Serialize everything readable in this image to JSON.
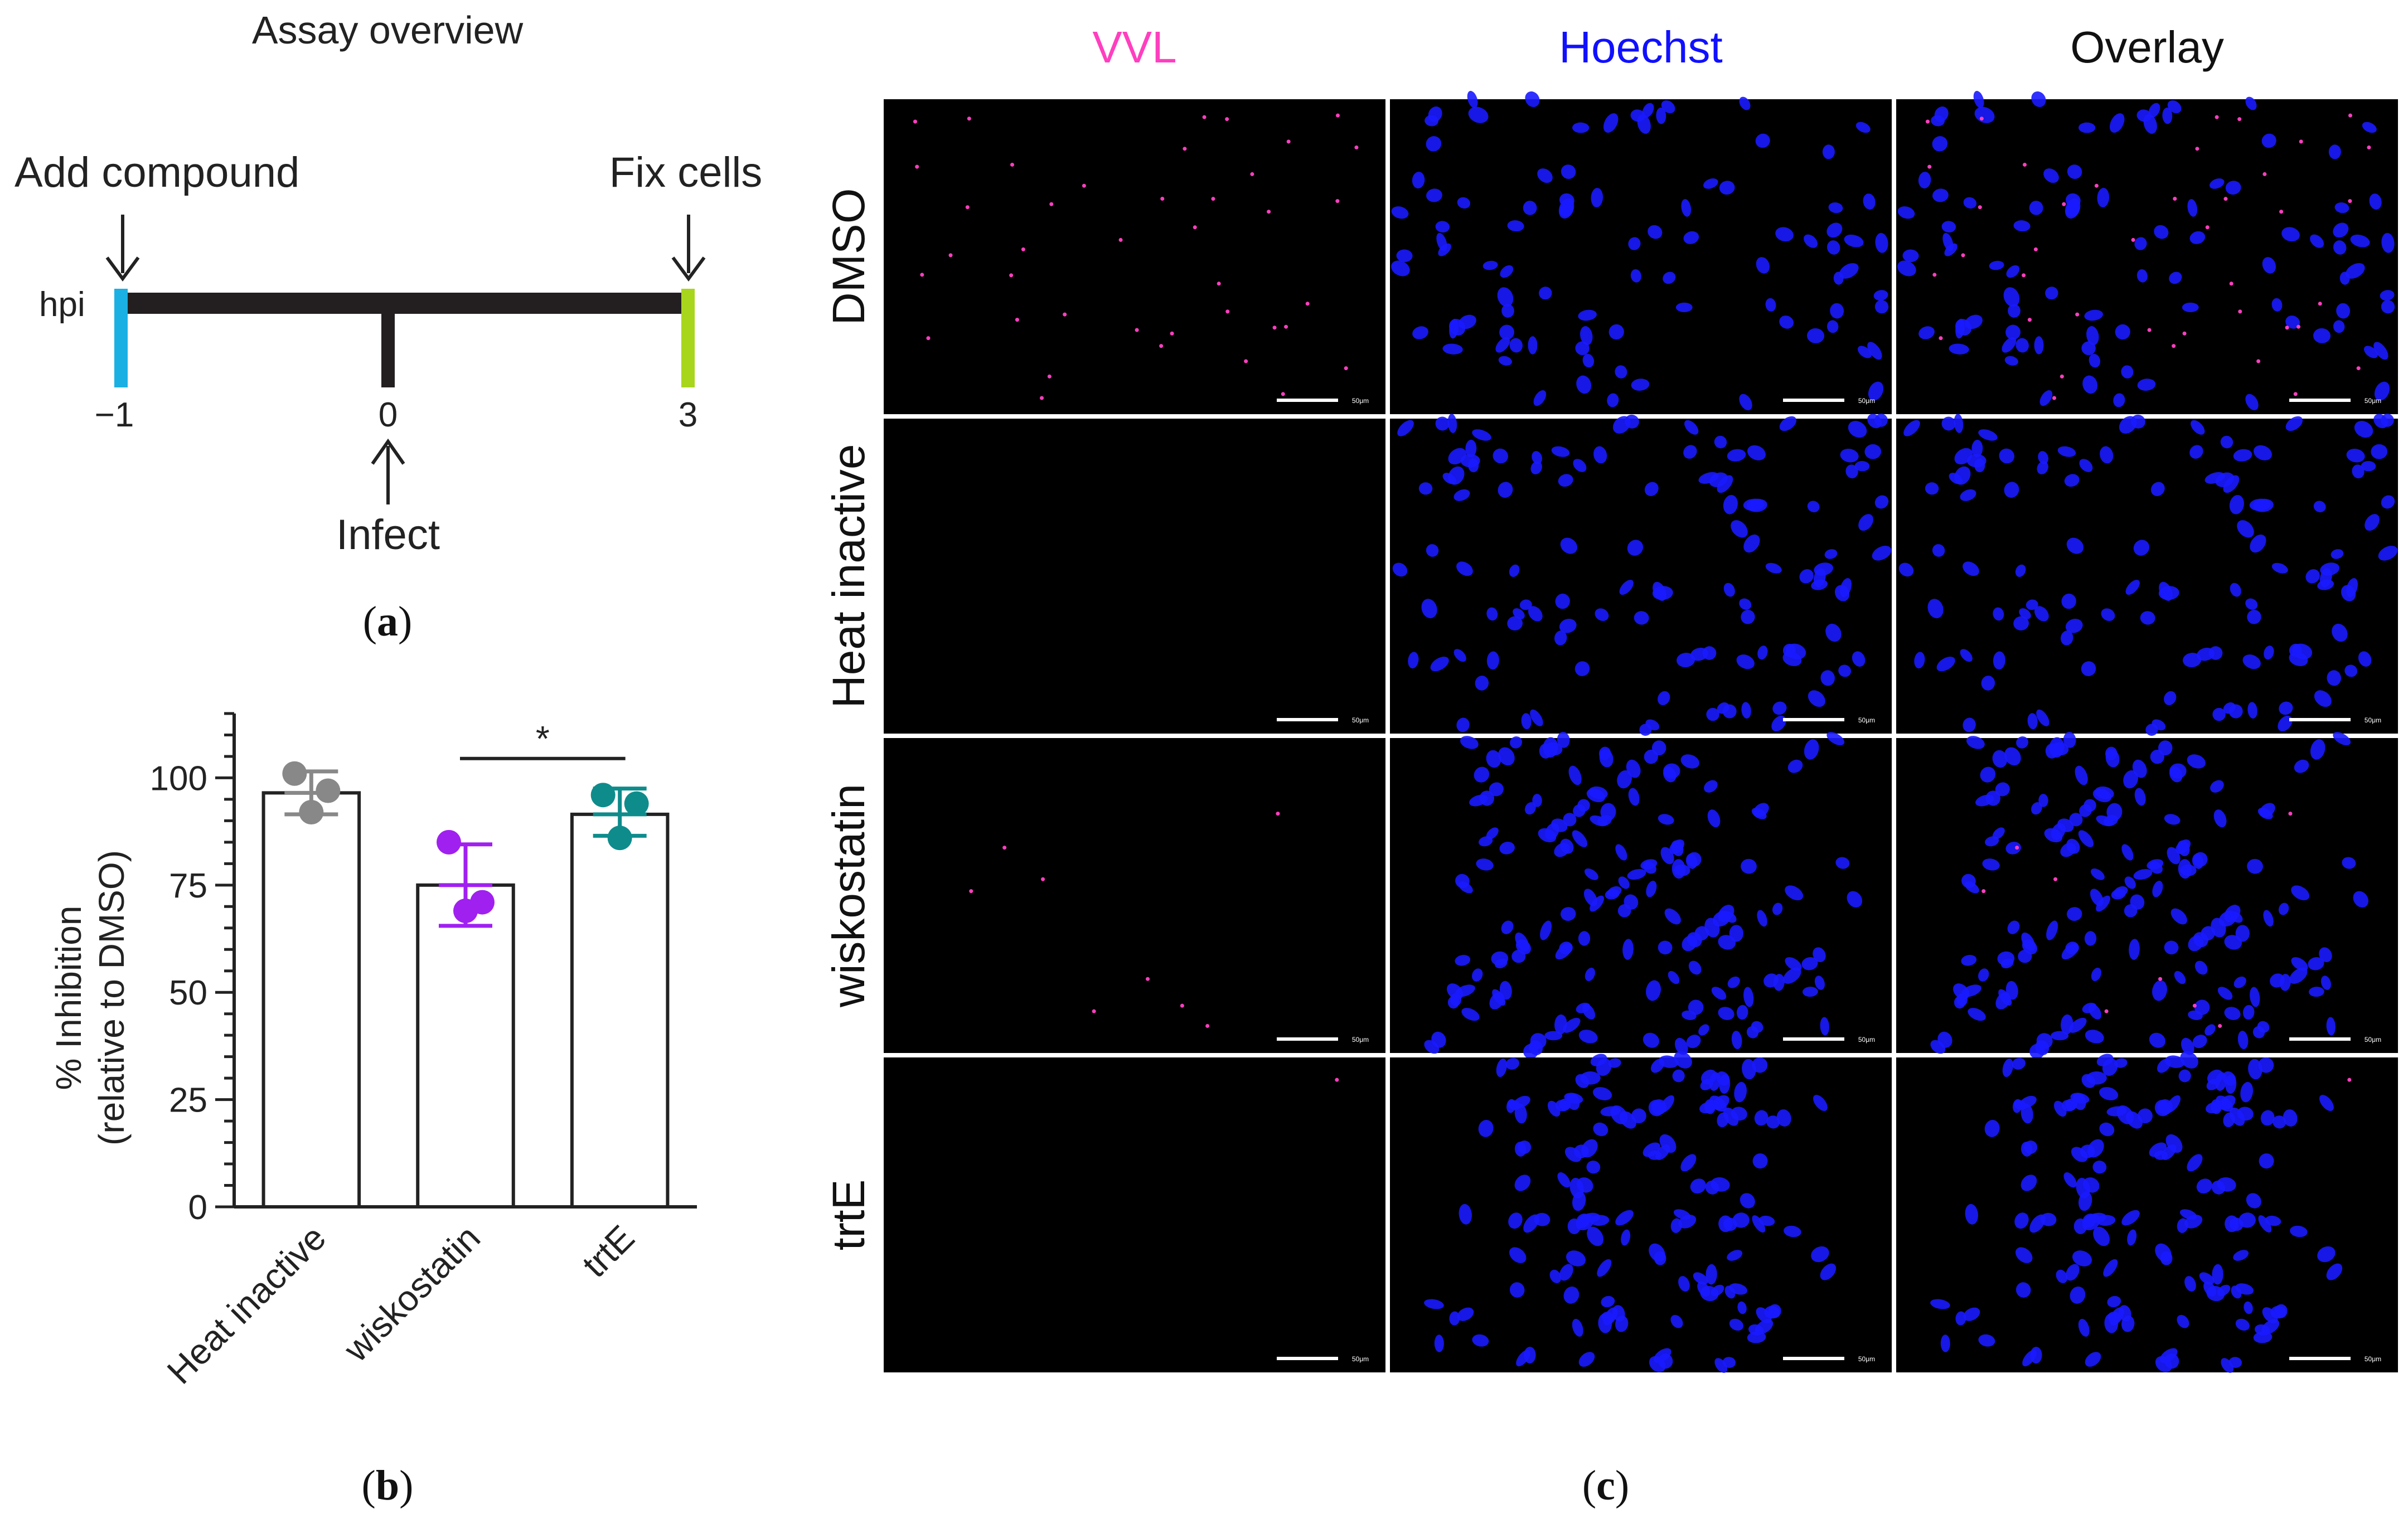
{
  "panel_a": {
    "title": "Assay overview",
    "add_label": "Add compound",
    "fix_label": "Fix cells",
    "infect_label": "Infect",
    "axis_label": "hpi",
    "ticks": [
      "−1",
      "0",
      "3"
    ],
    "caption": "a",
    "colors": {
      "start": "#1bb0e3",
      "end": "#a8d61c",
      "bar": "#231f20"
    }
  },
  "panel_b": {
    "caption": "b",
    "significance": "*"
  },
  "panel_c": {
    "caption": "c",
    "columns": [
      {
        "label": "VVL",
        "color": "#ff3fbf"
      },
      {
        "label": "Hoechst",
        "color": "#1010ff"
      },
      {
        "label": "Overlay",
        "color": "#111111"
      }
    ],
    "rows": [
      "DMSO",
      "Heat inactive",
      "wiskostatin",
      "trtE"
    ],
    "scale_bar_label": "50μm"
  },
  "chart_data": {
    "type": "bar",
    "categories": [
      "Heat inactive",
      "wiskostatin",
      "trtE"
    ],
    "values": [
      96.5,
      75,
      91.5
    ],
    "error_low": [
      91.5,
      65.5,
      86.5
    ],
    "error_high": [
      101.5,
      84.5,
      97.5
    ],
    "points": [
      [
        101,
        97,
        92
      ],
      [
        85,
        71,
        69
      ],
      [
        96,
        94,
        86
      ]
    ],
    "colors": [
      "#888888",
      "#a020f0",
      "#0e8c8c"
    ],
    "ylabel": "% Inhibition",
    "ylabel2": "(relative to DMSO)",
    "ylim": [
      0,
      115
    ],
    "yticks": [
      0,
      25,
      50,
      75,
      100
    ],
    "significance": {
      "between": [
        "wiskostatin",
        "trtE"
      ],
      "label": "*"
    }
  }
}
